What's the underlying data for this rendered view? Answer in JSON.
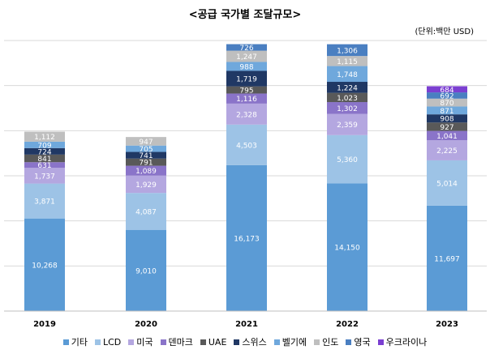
{
  "chart_data": {
    "type": "bar",
    "stacked": true,
    "title": "<공급 국가별 조달규모>",
    "unit_label": "(단위:백만 USD)",
    "categories": [
      "2019",
      "2020",
      "2021",
      "2022",
      "2023"
    ],
    "ylim": [
      0,
      30000
    ],
    "grid": true,
    "legend_position": "bottom",
    "series": [
      {
        "name": "기타",
        "color": "#5b9bd5",
        "values": [
          10268,
          9010,
          16173,
          14150,
          11697
        ]
      },
      {
        "name": "LCD",
        "color": "#9dc3e6",
        "values": [
          3871,
          4087,
          4503,
          5360,
          5014
        ]
      },
      {
        "name": "미국",
        "color": "#b4a7e0",
        "values": [
          1737,
          1929,
          2328,
          2359,
          2225
        ]
      },
      {
        "name": "덴마크",
        "color": "#8a74c9",
        "values": [
          631,
          1089,
          1116,
          1302,
          1041
        ]
      },
      {
        "name": "UAE",
        "color": "#595959",
        "values": [
          841,
          791,
          795,
          1023,
          927
        ]
      },
      {
        "name": "스위스",
        "color": "#203864",
        "values": [
          724,
          741,
          1719,
          1224,
          908
        ]
      },
      {
        "name": "벨기에",
        "color": "#6fa8dc",
        "values": [
          709,
          705,
          988,
          1748,
          871
        ]
      },
      {
        "name": "인도",
        "color": "#bfbfbf",
        "values": [
          1112,
          947,
          1247,
          1115,
          870
        ]
      },
      {
        "name": "영국",
        "color": "#4a7fc1",
        "values": [
          null,
          null,
          726,
          1306,
          692
        ]
      },
      {
        "name": "우크라이나",
        "color": "#7b3fd1",
        "values": [
          null,
          null,
          null,
          null,
          684
        ]
      }
    ]
  }
}
